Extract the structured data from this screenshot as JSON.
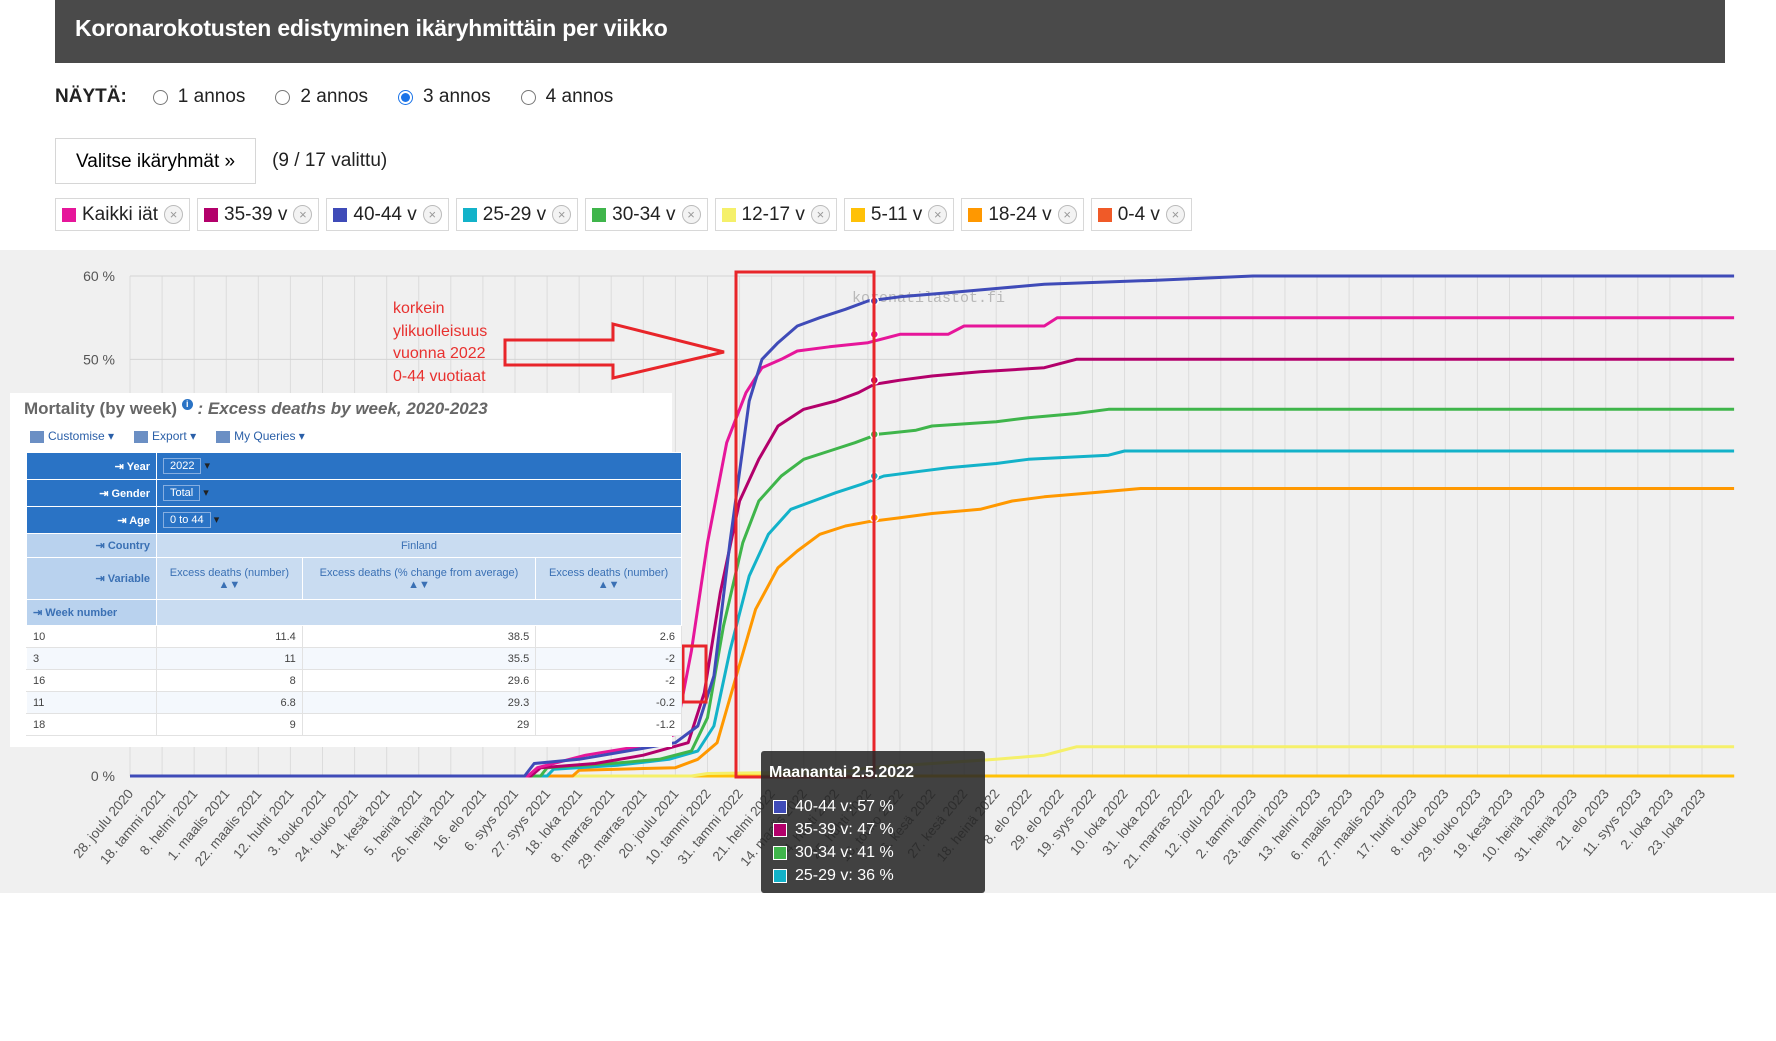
{
  "header": {
    "title": "Koronarokotusten edistyminen ikäryhmittäin per viikko"
  },
  "show": {
    "label": "NÄYTÄ:",
    "options": [
      {
        "label": "1 annos",
        "checked": false
      },
      {
        "label": "2 annos",
        "checked": false
      },
      {
        "label": "3 annos",
        "checked": true
      },
      {
        "label": "4 annos",
        "checked": false
      }
    ]
  },
  "age_selector": {
    "button_label": "Valitse ikäryhmät »",
    "count_text": "(9 / 17 valittu)"
  },
  "chips": [
    {
      "label": "Kaikki iät",
      "color": "#e6169a"
    },
    {
      "label": "35-39 v",
      "color": "#b3006b"
    },
    {
      "label": "40-44 v",
      "color": "#3f4bb8"
    },
    {
      "label": "25-29 v",
      "color": "#13b2c9"
    },
    {
      "label": "30-34 v",
      "color": "#3fb54b"
    },
    {
      "label": "12-17 v",
      "color": "#f5f06a"
    },
    {
      "label": "5-11 v",
      "color": "#ffc107"
    },
    {
      "label": "18-24 v",
      "color": "#ff9800"
    },
    {
      "label": "0-4 v",
      "color": "#f05a28"
    }
  ],
  "annotation": {
    "lines": [
      "korkein",
      "ylikuolleisuus",
      "vuonna 2022",
      "0-44 vuotiaat"
    ]
  },
  "watermark": "koronatilastot.fi",
  "chart_data": {
    "type": "line",
    "yticks": [
      "60 %",
      "50 %",
      "0 %"
    ],
    "ylim": [
      0,
      60
    ],
    "xlabels": [
      "28. joulu 2020",
      "18. tammi 2021",
      "8. helmi 2021",
      "1. maalis 2021",
      "22. maalis 2021",
      "12. huhti 2021",
      "3. touko 2021",
      "24. touko 2021",
      "14. kesä 2021",
      "5. heinä 2021",
      "26. heinä 2021",
      "16. elo 2021",
      "6. syys 2021",
      "27. syys 2021",
      "18. loka 2021",
      "8. marras 2021",
      "29. marras 2021",
      "20. joulu 2021",
      "10. tammi 2022",
      "31. tammi 2022",
      "21. helmi 2022",
      "14. maalis 2022",
      "4. huhti 2022",
      "25. huhti 2022",
      "16. touko 2022",
      "6. kesä 2022",
      "27. kesä 2022",
      "18. heinä 2022",
      "8. elo 2022",
      "29. elo 2022",
      "19. syys 2022",
      "10. loka 2022",
      "31. loka 2022",
      "21. marras 2022",
      "12. joulu 2022",
      "2. tammi 2023",
      "23. tammi 2023",
      "13. helmi 2023",
      "6. maalis 2023",
      "27. maalis 2023",
      "17. huhti 2023",
      "8. touko 2023",
      "29. touko 2023",
      "19. kesä 2023",
      "10. heinä 2023",
      "31. heinä 2023",
      "21. elo 2023",
      "11. syys 2023",
      "2. loka 2023",
      "23. loka 2023"
    ],
    "series": [
      {
        "name": "40-44 v",
        "color": "#3f4bb8",
        "points": [
          [
            0,
            0
          ],
          [
            12.3,
            0
          ],
          [
            12.6,
            1.5
          ],
          [
            14,
            2
          ],
          [
            15.5,
            3
          ],
          [
            17,
            4
          ],
          [
            17.7,
            6
          ],
          [
            18.2,
            12
          ],
          [
            18.7,
            28
          ],
          [
            19.3,
            45
          ],
          [
            19.7,
            50
          ],
          [
            20.2,
            52
          ],
          [
            20.8,
            54
          ],
          [
            21.5,
            55
          ],
          [
            22.3,
            56
          ],
          [
            23,
            57
          ],
          [
            24,
            57.5
          ],
          [
            25.5,
            58
          ],
          [
            27,
            58.5
          ],
          [
            28.5,
            59
          ],
          [
            32,
            59.5
          ],
          [
            35,
            60
          ],
          [
            50,
            60
          ]
        ]
      },
      {
        "name": "Kaikki iät",
        "color": "#e6169a",
        "points": [
          [
            0,
            0
          ],
          [
            12.4,
            0
          ],
          [
            12.7,
            1
          ],
          [
            14.2,
            2.5
          ],
          [
            15.8,
            3.5
          ],
          [
            17,
            5
          ],
          [
            17.5,
            15
          ],
          [
            18,
            28
          ],
          [
            18.6,
            40
          ],
          [
            19.2,
            46
          ],
          [
            19.7,
            49
          ],
          [
            20.3,
            50
          ],
          [
            20.8,
            51
          ],
          [
            21.8,
            51.5
          ],
          [
            23,
            52
          ],
          [
            24,
            53
          ],
          [
            25.5,
            53
          ],
          [
            26,
            54
          ],
          [
            28.5,
            54
          ],
          [
            28.9,
            55
          ],
          [
            50,
            55
          ]
        ]
      },
      {
        "name": "35-39 v",
        "color": "#b3006b",
        "points": [
          [
            0,
            0
          ],
          [
            12.5,
            0
          ],
          [
            12.8,
            1
          ],
          [
            14.5,
            1.5
          ],
          [
            16,
            2.5
          ],
          [
            17.4,
            4
          ],
          [
            17.9,
            10
          ],
          [
            18.4,
            22
          ],
          [
            19,
            33
          ],
          [
            19.6,
            38
          ],
          [
            20.2,
            42
          ],
          [
            21,
            44
          ],
          [
            22,
            45
          ],
          [
            22.7,
            46
          ],
          [
            23.2,
            47
          ],
          [
            24,
            47.5
          ],
          [
            25,
            48
          ],
          [
            26.5,
            48.5
          ],
          [
            28.5,
            49
          ],
          [
            29.5,
            50
          ],
          [
            50,
            50
          ]
        ]
      },
      {
        "name": "30-34 v",
        "color": "#3fb54b",
        "points": [
          [
            0,
            0
          ],
          [
            12.8,
            0
          ],
          [
            13,
            1
          ],
          [
            15,
            1.5
          ],
          [
            16.5,
            2
          ],
          [
            17.5,
            3
          ],
          [
            18,
            7
          ],
          [
            18.5,
            18
          ],
          [
            19.1,
            28
          ],
          [
            19.6,
            33
          ],
          [
            20.3,
            36
          ],
          [
            21,
            38
          ],
          [
            21.8,
            39
          ],
          [
            22.6,
            40
          ],
          [
            23.3,
            41
          ],
          [
            24.5,
            41.5
          ],
          [
            25,
            42
          ],
          [
            27,
            42.5
          ],
          [
            28,
            43
          ],
          [
            29.5,
            43.5
          ],
          [
            30.5,
            44
          ],
          [
            50,
            44
          ]
        ]
      },
      {
        "name": "25-29 v",
        "color": "#13b2c9",
        "points": [
          [
            0,
            0
          ],
          [
            13,
            0
          ],
          [
            13.2,
            0.8
          ],
          [
            15.2,
            1.3
          ],
          [
            16.8,
            2
          ],
          [
            17.7,
            3
          ],
          [
            18.2,
            6
          ],
          [
            18.7,
            15
          ],
          [
            19.3,
            24
          ],
          [
            19.9,
            29
          ],
          [
            20.6,
            32
          ],
          [
            21.3,
            33
          ],
          [
            22,
            34
          ],
          [
            22.8,
            35
          ],
          [
            23.5,
            36
          ],
          [
            24.5,
            36.5
          ],
          [
            25.5,
            37
          ],
          [
            27,
            37.5
          ],
          [
            28,
            38
          ],
          [
            30.5,
            38.5
          ],
          [
            31,
            39
          ],
          [
            50,
            39
          ]
        ]
      },
      {
        "name": "18-24 v",
        "color": "#ff9800",
        "points": [
          [
            0,
            0
          ],
          [
            13.8,
            0
          ],
          [
            14,
            0.7
          ],
          [
            16,
            0.9
          ],
          [
            17,
            1
          ],
          [
            17.7,
            2
          ],
          [
            18.3,
            4
          ],
          [
            18.9,
            12
          ],
          [
            19.5,
            20
          ],
          [
            20.2,
            25
          ],
          [
            20.8,
            27
          ],
          [
            21.5,
            29
          ],
          [
            22.3,
            30
          ],
          [
            23,
            30.5
          ],
          [
            24,
            31
          ],
          [
            25,
            31.5
          ],
          [
            26.5,
            32
          ],
          [
            27.5,
            33
          ],
          [
            28.5,
            33.5
          ],
          [
            30,
            34
          ],
          [
            31.5,
            34.5
          ],
          [
            50,
            34.5
          ]
        ]
      },
      {
        "name": "12-17 v",
        "color": "#f5f06a",
        "points": [
          [
            0,
            0
          ],
          [
            17.5,
            0
          ],
          [
            18,
            0.3
          ],
          [
            20,
            0.4
          ],
          [
            22.5,
            0.6
          ],
          [
            23,
            1
          ],
          [
            25,
            1.5
          ],
          [
            27,
            2
          ],
          [
            28.5,
            2.5
          ],
          [
            29,
            3
          ],
          [
            29.5,
            3.5
          ],
          [
            50,
            3.5
          ]
        ]
      },
      {
        "name": "5-11 v",
        "color": "#ffc107",
        "points": [
          [
            0,
            0
          ],
          [
            50,
            0
          ]
        ]
      },
      {
        "name": "0-4 v",
        "color": "#f05a28",
        "points": [
          [
            0,
            0
          ],
          [
            50,
            0
          ]
        ]
      }
    ],
    "tooltip": {
      "title": "Maanantai 2.5.2022",
      "rows": [
        {
          "text": "40-44 v: 57 %",
          "color": "#3f4bb8"
        },
        {
          "text": "35-39 v: 47 %",
          "color": "#b3006b"
        },
        {
          "text": "30-34 v: 41 %",
          "color": "#3fb54b"
        },
        {
          "text": "25-29 v: 36 %",
          "color": "#13b2c9"
        }
      ]
    }
  },
  "mortality_overlay": {
    "title": "Mortality (by week)",
    "subtitle": ": Excess deaths by week, 2020-2023",
    "toolbar": [
      "Customise",
      "Export",
      "My Queries"
    ],
    "filters": [
      {
        "label": "Year",
        "value": "2022"
      },
      {
        "label": "Gender",
        "value": "Total"
      },
      {
        "label": "Age",
        "value": "0 to 44"
      }
    ],
    "country_label": "Country",
    "country_value": "Finland",
    "variable_label": "Variable",
    "columns": [
      "Excess deaths (number)",
      "Excess deaths (% change from average)",
      "Excess deaths (number)"
    ],
    "week_label": "Week number",
    "rows": [
      {
        "week": "10",
        "v1": "11.4",
        "v2": "38.5",
        "v3": "2.6"
      },
      {
        "week": "3",
        "v1": "11",
        "v2": "35.5",
        "v3": "-2"
      },
      {
        "week": "16",
        "v1": "8",
        "v2": "29.6",
        "v3": "-2"
      },
      {
        "week": "11",
        "v1": "6.8",
        "v2": "29.3",
        "v3": "-0.2"
      },
      {
        "week": "18",
        "v1": "9",
        "v2": "29",
        "v3": "-1.2"
      }
    ]
  }
}
